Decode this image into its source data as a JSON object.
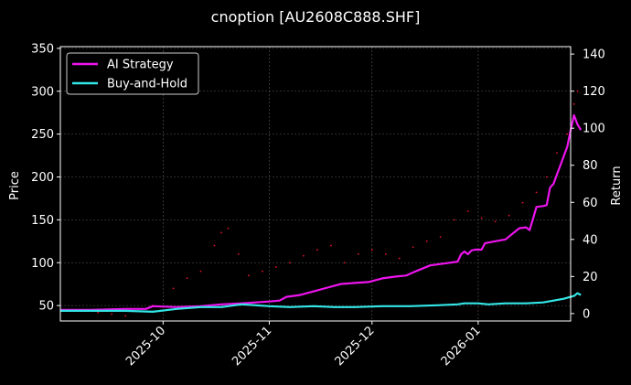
{
  "chart_data": {
    "type": "line",
    "title": "cnoption [AU2608C888.SHF]",
    "ylabel_left": "Price",
    "ylabel_right": "Return",
    "ylim_left": [
      32,
      352
    ],
    "yticks_left": [
      50,
      100,
      150,
      200,
      250,
      300,
      350
    ],
    "ylim_right": [
      -4,
      144
    ],
    "yticks_right": [
      0,
      20,
      40,
      60,
      80,
      100,
      120,
      140
    ],
    "xlim": [
      "2025-09-01",
      "2026-01-28"
    ],
    "xticks": [
      {
        "date": "2025-10-01",
        "label": "2025-10"
      },
      {
        "date": "2025-11-01",
        "label": "2025-11"
      },
      {
        "date": "2025-12-01",
        "label": "2025-12"
      },
      {
        "date": "2026-01-01",
        "label": "2026-01"
      }
    ],
    "grid": true,
    "legend_position": "top-left",
    "colors": {
      "background": "#000000",
      "ai_strategy": "#ee14ee",
      "buy_and_hold": "#33e6e6",
      "price_points": "#e8142b",
      "grid": "#5a5a5a"
    },
    "series": [
      {
        "name": "AI Strategy",
        "axis": "right",
        "color": "#ee14ee",
        "points": [
          [
            "2025-09-01",
            2.0
          ],
          [
            "2025-09-10",
            2.0
          ],
          [
            "2025-09-20",
            2.5
          ],
          [
            "2025-09-26",
            2.5
          ],
          [
            "2025-09-28",
            4.0
          ],
          [
            "2025-10-05",
            3.5
          ],
          [
            "2025-10-12",
            4.0
          ],
          [
            "2025-10-18",
            5.0
          ],
          [
            "2025-10-24",
            5.5
          ],
          [
            "2025-10-28",
            6.0
          ],
          [
            "2025-11-01",
            6.5
          ],
          [
            "2025-11-04",
            7.0
          ],
          [
            "2025-11-06",
            9.0
          ],
          [
            "2025-11-10",
            10.0
          ],
          [
            "2025-11-14",
            12.0
          ],
          [
            "2025-11-18",
            14.0
          ],
          [
            "2025-11-22",
            16.0
          ],
          [
            "2025-11-26",
            16.5
          ],
          [
            "2025-11-30",
            17.0
          ],
          [
            "2025-12-04",
            19.0
          ],
          [
            "2025-12-08",
            20.0
          ],
          [
            "2025-12-11",
            20.5
          ],
          [
            "2025-12-14",
            23.0
          ],
          [
            "2025-12-18",
            26.0
          ],
          [
            "2025-12-22",
            27.0
          ],
          [
            "2025-12-26",
            28.0
          ],
          [
            "2025-12-27",
            32.0
          ],
          [
            "2025-12-28",
            33.5
          ],
          [
            "2025-12-29",
            32.0
          ],
          [
            "2025-12-30",
            34.0
          ],
          [
            "2025-12-31",
            34.5
          ],
          [
            "2026-01-02",
            34.5
          ],
          [
            "2026-01-03",
            38.0
          ],
          [
            "2026-01-06",
            39.0
          ],
          [
            "2026-01-09",
            40.0
          ],
          [
            "2026-01-11",
            43.0
          ],
          [
            "2026-01-13",
            46.0
          ],
          [
            "2026-01-15",
            46.5
          ],
          [
            "2026-01-16",
            45.0
          ],
          [
            "2026-01-17",
            51.0
          ],
          [
            "2026-01-18",
            57.5
          ],
          [
            "2026-01-20",
            58.0
          ],
          [
            "2026-01-21",
            58.5
          ],
          [
            "2026-01-22",
            68.0
          ],
          [
            "2026-01-23",
            70.0
          ],
          [
            "2026-01-24",
            75.0
          ],
          [
            "2026-01-25",
            80.0
          ],
          [
            "2026-01-26",
            85.0
          ],
          [
            "2026-01-27",
            90.0
          ],
          [
            "2026-01-28",
            99.0
          ],
          [
            "2026-01-29",
            107.0
          ],
          [
            "2026-01-30",
            102.0
          ],
          [
            "2026-01-31",
            99.0
          ]
        ]
      },
      {
        "name": "Buy-and-Hold",
        "axis": "right",
        "color": "#33e6e6",
        "points": [
          [
            "2025-09-01",
            1.5
          ],
          [
            "2025-09-10",
            1.5
          ],
          [
            "2025-09-20",
            1.5
          ],
          [
            "2025-09-28",
            1.0
          ],
          [
            "2025-10-05",
            2.5
          ],
          [
            "2025-10-12",
            3.5
          ],
          [
            "2025-10-18",
            3.5
          ],
          [
            "2025-10-24",
            5.0
          ],
          [
            "2025-10-28",
            4.5
          ],
          [
            "2025-11-01",
            4.0
          ],
          [
            "2025-11-07",
            3.5
          ],
          [
            "2025-11-14",
            4.0
          ],
          [
            "2025-11-20",
            3.5
          ],
          [
            "2025-11-26",
            3.5
          ],
          [
            "2025-12-04",
            4.0
          ],
          [
            "2025-12-12",
            4.0
          ],
          [
            "2025-12-20",
            4.5
          ],
          [
            "2025-12-26",
            5.0
          ],
          [
            "2025-12-28",
            5.5
          ],
          [
            "2026-01-01",
            5.5
          ],
          [
            "2026-01-04",
            5.0
          ],
          [
            "2026-01-09",
            5.5
          ],
          [
            "2026-01-15",
            5.5
          ],
          [
            "2026-01-20",
            6.0
          ],
          [
            "2026-01-23",
            7.0
          ],
          [
            "2026-01-26",
            8.0
          ],
          [
            "2026-01-29",
            9.5
          ],
          [
            "2026-01-30",
            11.0
          ],
          [
            "2026-01-31",
            10.0
          ]
        ]
      },
      {
        "axis": "left",
        "style": "dots",
        "color": "#e8142b",
        "points": [
          [
            "2025-09-08",
            45
          ],
          [
            "2025-09-12",
            42
          ],
          [
            "2025-09-16",
            40
          ],
          [
            "2025-09-20",
            38
          ],
          [
            "2025-09-24",
            46
          ],
          [
            "2025-09-28",
            50
          ],
          [
            "2025-10-04",
            70
          ],
          [
            "2025-10-08",
            82
          ],
          [
            "2025-10-12",
            90
          ],
          [
            "2025-10-16",
            120
          ],
          [
            "2025-10-18",
            135
          ],
          [
            "2025-10-20",
            140
          ],
          [
            "2025-10-23",
            110
          ],
          [
            "2025-10-26",
            85
          ],
          [
            "2025-10-30",
            90
          ],
          [
            "2025-11-03",
            95
          ],
          [
            "2025-11-07",
            100
          ],
          [
            "2025-11-11",
            108
          ],
          [
            "2025-11-15",
            115
          ],
          [
            "2025-11-19",
            120
          ],
          [
            "2025-11-23",
            100
          ],
          [
            "2025-11-27",
            110
          ],
          [
            "2025-12-01",
            115
          ],
          [
            "2025-12-05",
            110
          ],
          [
            "2025-12-09",
            105
          ],
          [
            "2025-12-13",
            118
          ],
          [
            "2025-12-17",
            125
          ],
          [
            "2025-12-21",
            130
          ],
          [
            "2025-12-25",
            150
          ],
          [
            "2025-12-29",
            160
          ],
          [
            "2026-01-02",
            152
          ],
          [
            "2026-01-06",
            148
          ],
          [
            "2026-01-10",
            155
          ],
          [
            "2026-01-14",
            170
          ],
          [
            "2026-01-18",
            182
          ],
          [
            "2026-01-21",
            200
          ],
          [
            "2026-01-24",
            228
          ],
          [
            "2026-01-27",
            250
          ],
          [
            "2026-01-29",
            285
          ],
          [
            "2026-01-30",
            300
          ]
        ]
      }
    ]
  }
}
